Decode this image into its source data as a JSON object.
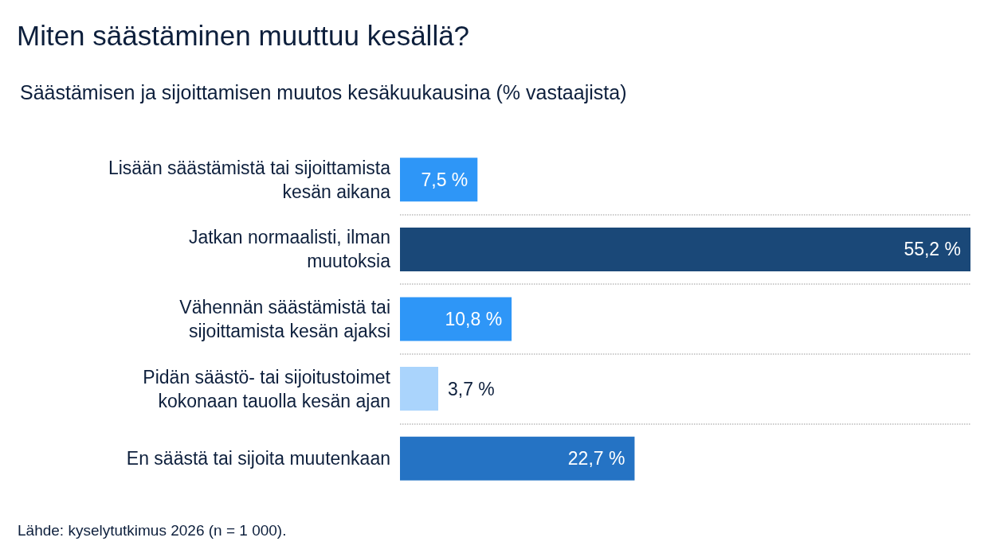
{
  "chart_data": {
    "type": "bar",
    "orientation": "horizontal",
    "title": "Miten säästäminen muuttuu kesällä?",
    "subtitle": "Säästämisen ja sijoittamisen muutos kesäkuukausina (% vastaajista)",
    "categories": [
      "Lisään säästämistä tai sijoittamista\nkesän aikana",
      "Jatkan normaalisti, ilman\nmuutoksia",
      "Vähennän säästämistä tai\nsijoittamista kesän ajaksi",
      "Pidän säästö- tai sijoitustoimet\nkokonaan tauolla kesän ajan",
      "En säästä tai sijoita muutenkaan"
    ],
    "values": [
      7.5,
      55.2,
      10.8,
      3.7,
      22.7
    ],
    "value_labels": [
      "7,5 %",
      "55,2 %",
      "10,8 %",
      "3,7 %",
      "22,7 %"
    ],
    "colors": [
      "#2e96f7",
      "#1a4878",
      "#2e96f7",
      "#aad4fc",
      "#2573c4"
    ],
    "grid": "y",
    "tick_labels": "y",
    "annotations": [
      "Lähde: kyselytutkimus 2026 (n = 1 000)."
    ]
  }
}
